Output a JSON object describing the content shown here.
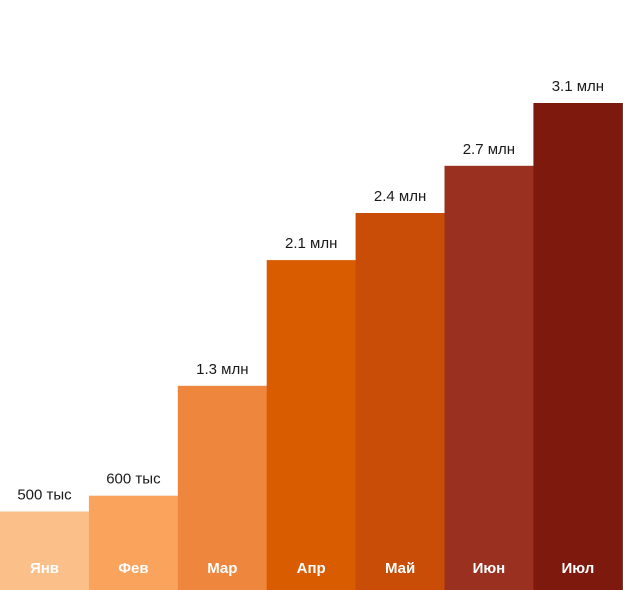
{
  "chart_data": {
    "type": "bar",
    "categories": [
      "Янв",
      "Фев",
      "Мар",
      "Апр",
      "Май",
      "Июн",
      "Июл"
    ],
    "values": [
      500000,
      600000,
      1300000,
      2100000,
      2400000,
      2700000,
      3100000
    ],
    "value_labels": [
      "500 тыс",
      "600 тыс",
      "1.3 млн",
      "2.1 млн",
      "2.4 млн",
      "2.7 млн",
      "3.1 млн"
    ],
    "colors": [
      "#fbbf8a",
      "#f9a35c",
      "#ee863d",
      "#d95c00",
      "#c94d07",
      "#9a3020",
      "#7e190d"
    ],
    "title": "",
    "xlabel": "",
    "ylabel": "",
    "grid": false,
    "legend": "none"
  }
}
